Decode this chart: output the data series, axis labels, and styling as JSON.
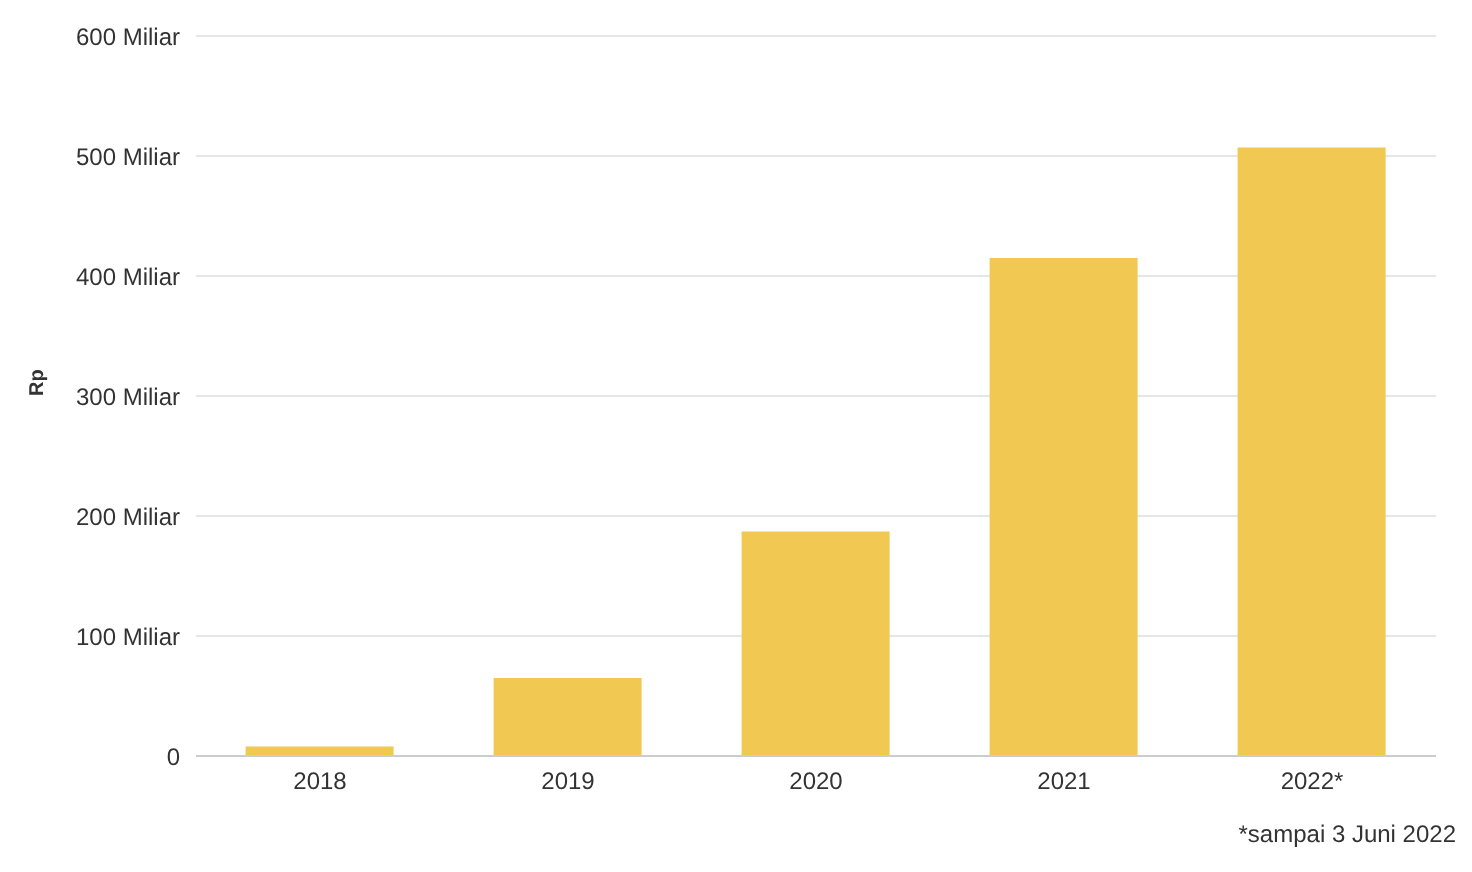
{
  "chart_data": {
    "type": "bar",
    "ylabel": "Rp",
    "categories": [
      "2018",
      "2019",
      "2020",
      "2021",
      "2022*"
    ],
    "values": [
      8,
      65,
      187,
      415,
      507
    ],
    "color": "#f0c852",
    "ylim": [
      0,
      600
    ],
    "yticks": [
      0,
      {
        "value": 100,
        "label": "100 Miliar"
      },
      {
        "value": 200,
        "label": "200 Miliar"
      },
      {
        "value": 300,
        "label": "300 Miliar"
      },
      {
        "value": 400,
        "label": "400 Miliar"
      },
      {
        "value": 500,
        "label": "500 Miliar"
      },
      {
        "value": 600,
        "label": "600 Miliar"
      }
    ],
    "grid": "y",
    "annotations": [
      "*sampai 3 Juni 2022"
    ]
  }
}
